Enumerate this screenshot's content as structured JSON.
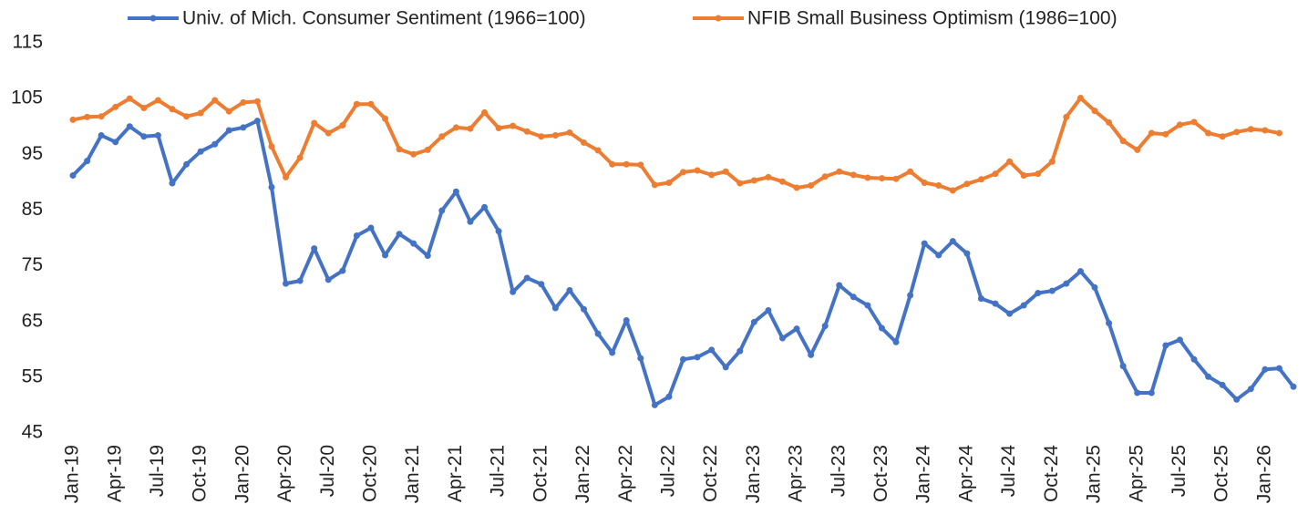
{
  "chart_data": {
    "type": "line",
    "categories": [
      "Jan-19",
      null,
      null,
      "Apr-19",
      null,
      null,
      "Jul-19",
      null,
      null,
      "Oct-19",
      null,
      null,
      "Jan-20",
      null,
      null,
      "Apr-20",
      null,
      null,
      "Jul-20",
      null,
      null,
      "Oct-20",
      null,
      null,
      "Jan-21",
      null,
      null,
      "Apr-21",
      null,
      null,
      "Jul-21",
      null,
      null,
      "Oct-21",
      null,
      null,
      "Jan-22",
      null,
      null,
      "Apr-22",
      null,
      null,
      "Jul-22",
      null,
      null,
      "Oct-22",
      null,
      null,
      "Jan-23",
      null,
      null,
      "Apr-23",
      null,
      null,
      "Jul-23",
      null,
      null,
      "Oct-23",
      null,
      null,
      "Jan-24",
      null,
      null,
      "Apr-24",
      null,
      null,
      "Jul-24",
      null,
      null,
      "Oct-24",
      null,
      null,
      "Jan-25",
      null,
      null,
      "Apr-25",
      null,
      null,
      "Jul-25",
      null,
      null,
      "Oct-25",
      null,
      null,
      "Jan-26",
      null,
      null
    ],
    "series": [
      {
        "name": "Univ. of Mich. Consumer Sentiment (1966=100)",
        "color": "#4472c4",
        "values": [
          91.2,
          93.8,
          98.4,
          97.2,
          100.0,
          98.2,
          98.4,
          89.8,
          93.2,
          95.5,
          96.8,
          99.3,
          99.8,
          101.0,
          89.1,
          71.8,
          72.3,
          78.1,
          72.5,
          74.1,
          80.4,
          81.8,
          76.9,
          80.7,
          79.0,
          76.8,
          84.9,
          88.3,
          82.9,
          85.5,
          81.2,
          70.3,
          72.8,
          71.7,
          67.4,
          70.6,
          67.2,
          62.8,
          59.4,
          65.2,
          58.4,
          50.0,
          51.5,
          58.2,
          58.6,
          59.9,
          56.8,
          59.7,
          64.9,
          67.0,
          62.0,
          63.7,
          59.0,
          64.2,
          71.5,
          69.4,
          67.9,
          63.8,
          61.3,
          69.7,
          79.0,
          76.9,
          79.4,
          77.2,
          69.1,
          68.2,
          66.4,
          67.9,
          70.1,
          70.5,
          71.8,
          74.0,
          71.1,
          64.7,
          57.0,
          52.2,
          52.2,
          60.7,
          61.7,
          58.2,
          55.1,
          53.6,
          51.0,
          52.9,
          56.4,
          56.6,
          53.3
        ]
      },
      {
        "name": "NFIB Small Business Optimism (1986=100)",
        "color": "#ed7d31",
        "values": [
          101.2,
          101.7,
          101.8,
          103.5,
          105.0,
          103.3,
          104.7,
          103.1,
          101.8,
          102.4,
          104.7,
          102.7,
          104.3,
          104.5,
          96.4,
          90.9,
          94.4,
          100.6,
          98.8,
          100.2,
          104.0,
          104.0,
          101.4,
          95.9,
          95.0,
          95.8,
          98.2,
          99.8,
          99.6,
          102.5,
          99.7,
          100.1,
          99.1,
          98.2,
          98.4,
          98.9,
          97.1,
          95.7,
          93.2,
          93.2,
          93.1,
          89.5,
          89.9,
          91.8,
          92.1,
          91.3,
          91.9,
          89.8,
          90.3,
          90.9,
          90.1,
          89.0,
          89.4,
          91.0,
          91.9,
          91.3,
          90.8,
          90.7,
          90.6,
          91.9,
          89.9,
          89.4,
          88.5,
          89.7,
          90.5,
          91.5,
          93.7,
          91.2,
          91.5,
          93.7,
          101.7,
          105.1,
          102.8,
          100.7,
          97.4,
          95.8,
          98.8,
          98.6,
          100.3,
          100.8,
          98.8,
          98.2,
          99.0,
          99.5,
          99.3,
          98.8,
          null
        ]
      }
    ],
    "ylim": [
      45,
      115
    ],
    "yticks": [
      45,
      55,
      65,
      75,
      85,
      95,
      105,
      115
    ],
    "grid": false,
    "legend": "top"
  }
}
